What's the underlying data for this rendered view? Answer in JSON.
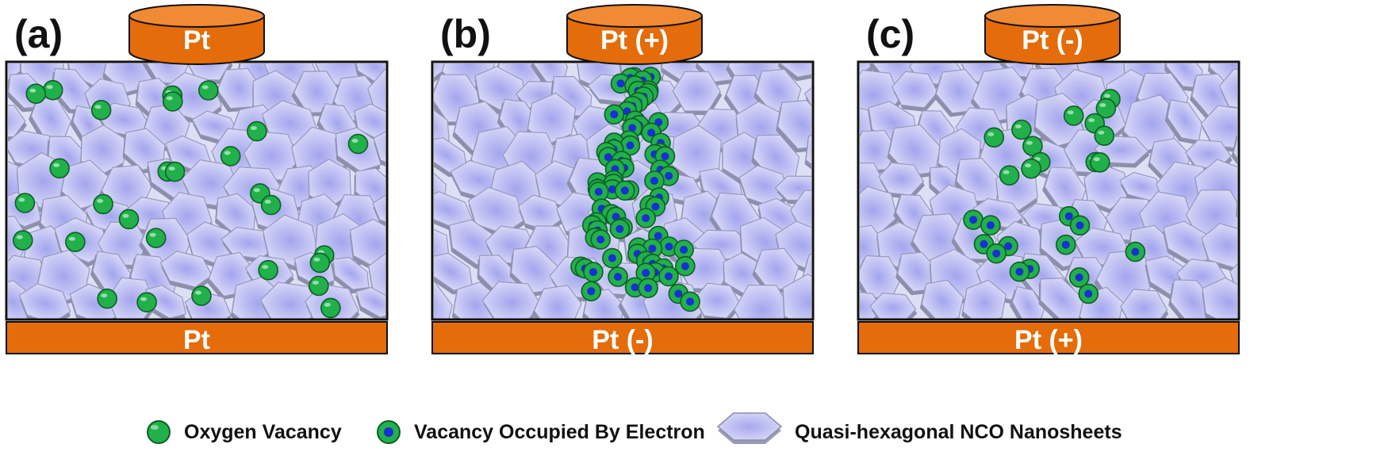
{
  "panels": [
    {
      "label": "(a)",
      "top_electrode": "Pt",
      "bottom_electrode": "Pt",
      "state": "random",
      "vacancies": 28
    },
    {
      "label": "(b)",
      "top_electrode": "Pt (+)",
      "bottom_electrode": "Pt (-)",
      "state": "conductive filament",
      "vacancies": 80
    },
    {
      "label": "(c)",
      "top_electrode": "Pt (-)",
      "bottom_electrode": "Pt (+)",
      "state": "ruptured filament",
      "vacancies": 26
    }
  ],
  "legend": {
    "oxygen_vacancy": "Oxygen Vacancy",
    "vacancy_occupied": "Vacancy Occupied By Electron",
    "nanosheets": "Quasi-hexagonal NCO Nanosheets"
  },
  "colors": {
    "electrode": "#e46c0a",
    "electrode_dark": "#b45307",
    "vacancy": "#22b04a",
    "electron": "#1a2fd6",
    "nanosheet": "#c4c6ee",
    "frame": "#111111"
  }
}
